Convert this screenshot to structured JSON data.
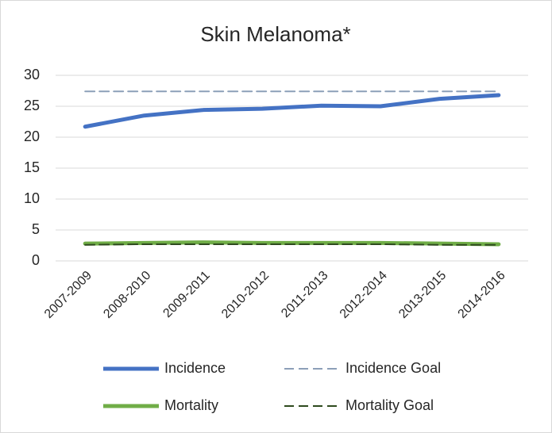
{
  "chart_data": {
    "type": "line",
    "title": "Skin Melanoma*",
    "categories": [
      "2007-2009",
      "2008-2010",
      "2009-2011",
      "2010-2012",
      "2011-2013",
      "2012-2014",
      "2013-2015",
      "2014-2016"
    ],
    "series": [
      {
        "name": "Incidence",
        "color": "#4472c4",
        "line_style": "solid",
        "values": [
          21.7,
          23.5,
          24.4,
          24.6,
          25.1,
          25.0,
          26.2,
          26.8
        ]
      },
      {
        "name": "Incidence Goal",
        "color": "#8c9fb8",
        "line_style": "dashed",
        "values": [
          27.4,
          27.4,
          27.4,
          27.4,
          27.4,
          27.4,
          27.4,
          27.4
        ]
      },
      {
        "name": "Mortality",
        "color": "#70ad47",
        "line_style": "solid",
        "values": [
          2.8,
          2.9,
          3.0,
          2.9,
          2.9,
          2.9,
          2.8,
          2.7
        ]
      },
      {
        "name": "Mortality Goal",
        "color": "#2e4a1e",
        "line_style": "dashed",
        "values": [
          2.6,
          2.7,
          2.7,
          2.7,
          2.7,
          2.7,
          2.6,
          2.6
        ]
      }
    ],
    "ylim": [
      0,
      30
    ],
    "yticks": [
      0,
      5,
      10,
      15,
      20,
      25,
      30
    ],
    "grid": true
  }
}
